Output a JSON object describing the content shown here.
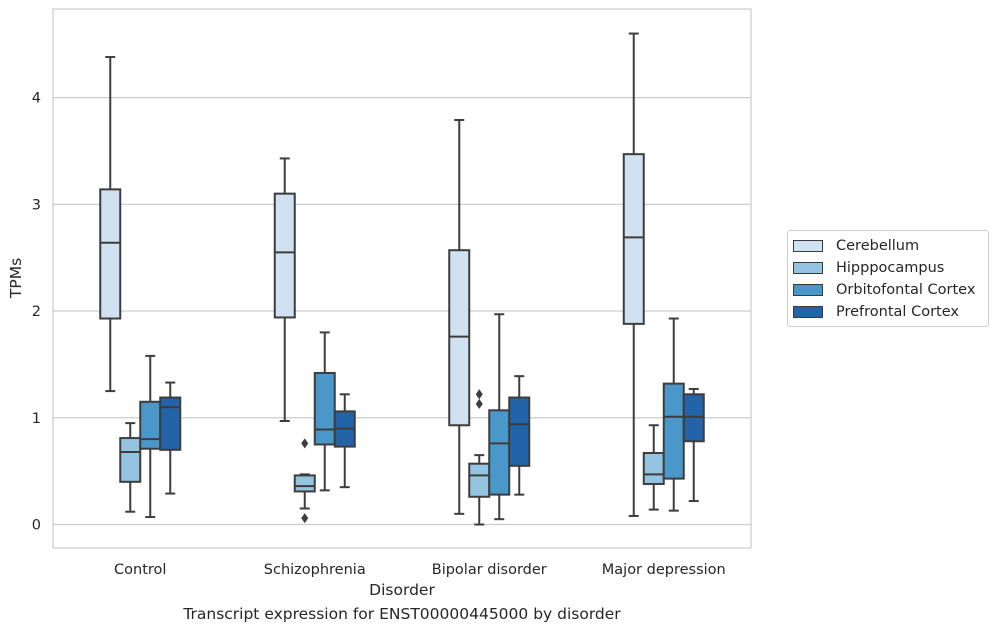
{
  "chart_data": {
    "type": "boxplot",
    "caption": "Transcript expression for ENST00000445000 by disorder",
    "xlabel": "Disorder",
    "ylabel": "TPMs",
    "ylim": [
      -0.22,
      4.83
    ],
    "yticks": [
      0,
      1,
      2,
      3,
      4
    ],
    "grid": "horizontal",
    "legend_position": "right",
    "categories": [
      "Control",
      "Schizophrenia",
      "Bipolar disorder",
      "Major depression"
    ],
    "series": [
      {
        "name": "Cerebellum",
        "color": "#d0e1f2",
        "boxes": [
          {
            "min": 1.25,
            "q1": 1.93,
            "median": 2.64,
            "q3": 3.14,
            "max": 4.38,
            "outliers": []
          },
          {
            "min": 0.97,
            "q1": 1.94,
            "median": 2.55,
            "q3": 3.1,
            "max": 3.43,
            "outliers": []
          },
          {
            "min": 0.1,
            "q1": 0.93,
            "median": 1.76,
            "q3": 2.57,
            "max": 3.79,
            "outliers": []
          },
          {
            "min": 0.08,
            "q1": 1.88,
            "median": 2.69,
            "q3": 3.47,
            "max": 4.6,
            "outliers": []
          }
        ]
      },
      {
        "name": "Hipppocampus",
        "color": "#94c4df",
        "boxes": [
          {
            "min": 0.12,
            "q1": 0.4,
            "median": 0.68,
            "q3": 0.81,
            "max": 0.95,
            "outliers": []
          },
          {
            "min": 0.15,
            "q1": 0.31,
            "median": 0.36,
            "q3": 0.46,
            "max": 0.47,
            "outliers": [
              0.06,
              0.76
            ]
          },
          {
            "min": 0.0,
            "q1": 0.26,
            "median": 0.46,
            "q3": 0.57,
            "max": 0.65,
            "outliers": [
              1.13,
              1.22
            ]
          },
          {
            "min": 0.14,
            "q1": 0.38,
            "median": 0.47,
            "q3": 0.67,
            "max": 0.93,
            "outliers": []
          }
        ]
      },
      {
        "name": "Orbitofontal Cortex",
        "color": "#4a98c9",
        "boxes": [
          {
            "min": 0.07,
            "q1": 0.71,
            "median": 0.8,
            "q3": 1.15,
            "max": 1.58,
            "outliers": []
          },
          {
            "min": 0.32,
            "q1": 0.75,
            "median": 0.89,
            "q3": 1.42,
            "max": 1.8,
            "outliers": []
          },
          {
            "min": 0.05,
            "q1": 0.28,
            "median": 0.76,
            "q3": 1.07,
            "max": 1.97,
            "outliers": []
          },
          {
            "min": 0.13,
            "q1": 0.43,
            "median": 1.01,
            "q3": 1.32,
            "max": 1.93,
            "outliers": []
          }
        ]
      },
      {
        "name": "Prefrontal Cortex",
        "color": "#2363a8",
        "boxes": [
          {
            "min": 0.29,
            "q1": 0.7,
            "median": 1.1,
            "q3": 1.19,
            "max": 1.33,
            "outliers": []
          },
          {
            "min": 0.35,
            "q1": 0.73,
            "median": 0.9,
            "q3": 1.06,
            "max": 1.22,
            "outliers": []
          },
          {
            "min": 0.28,
            "q1": 0.55,
            "median": 0.94,
            "q3": 1.19,
            "max": 1.39,
            "outliers": []
          },
          {
            "min": 0.22,
            "q1": 0.78,
            "median": 1.01,
            "q3": 1.22,
            "max": 1.27,
            "outliers": []
          }
        ]
      }
    ]
  }
}
